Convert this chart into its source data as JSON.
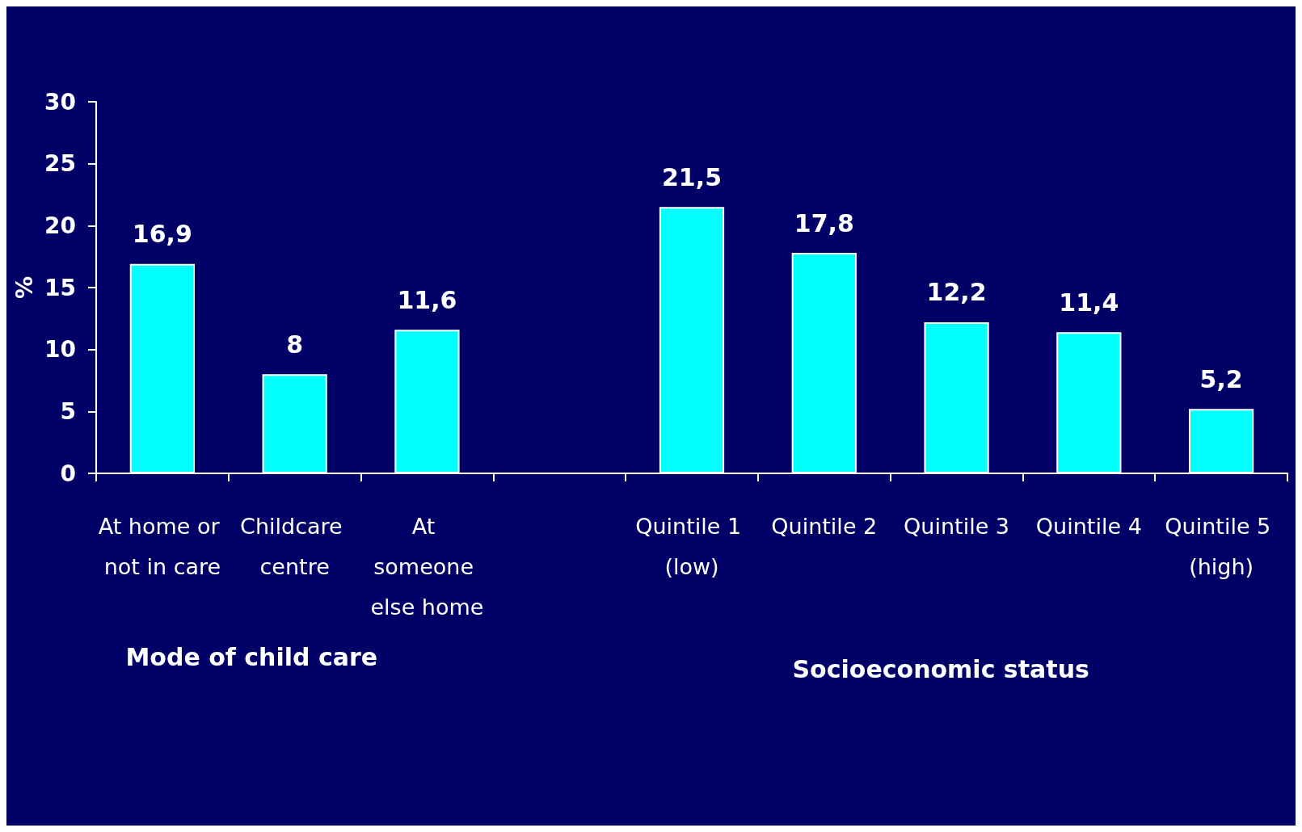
{
  "chart_data": {
    "type": "bar",
    "ylabel": "%",
    "categories": [
      "At home or not in care",
      "Childcare centre",
      "At someone else home",
      null,
      "Quintile 1 (low)",
      "Quintile 2",
      "Quintile 3",
      "Quintile 4",
      "Quintile 5 (high)"
    ],
    "values": [
      16.9,
      8,
      11.6,
      null,
      21.5,
      17.8,
      12.2,
      11.4,
      5.2
    ],
    "value_labels": [
      "16,9",
      "8",
      "11,6",
      null,
      "21,5",
      "17,8",
      "12,2",
      "11,4",
      "5,2"
    ],
    "color": "#00ffff",
    "ylim": [
      0,
      30
    ],
    "yticks": [
      0,
      5,
      10,
      15,
      20,
      25,
      30
    ],
    "grid": false,
    "annotations": [
      "Mode of child care",
      "Socioeconomic status"
    ]
  }
}
